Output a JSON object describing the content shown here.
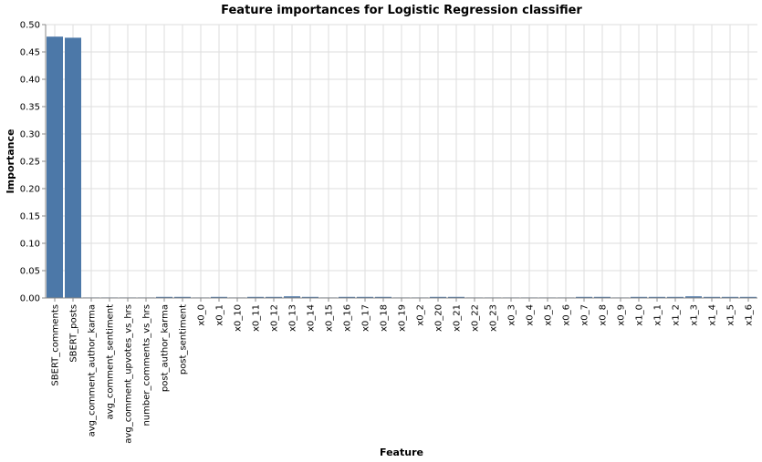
{
  "chart_data": {
    "type": "bar",
    "title": "Feature importances for Logistic Regression classifier",
    "xlabel": "Feature",
    "ylabel": "Importance",
    "ylim": [
      0,
      0.5
    ],
    "yticks": [
      "0.00",
      "0.05",
      "0.10",
      "0.15",
      "0.20",
      "0.25",
      "0.30",
      "0.35",
      "0.40",
      "0.45",
      "0.50"
    ],
    "grid": true,
    "bar_color": "#4c78a8",
    "categories": [
      "SBERT_comments",
      "SBERT_posts",
      "avg_comment_author_karma",
      "avg_comment_sentiment",
      "avg_comment_upvotes_vs_hrs",
      "number_comments_vs_hrs",
      "post_author_karma",
      "post_sentiment",
      "x0_0",
      "x0_1",
      "x0_10",
      "x0_11",
      "x0_12",
      "x0_13",
      "x0_14",
      "x0_15",
      "x0_16",
      "x0_17",
      "x0_18",
      "x0_19",
      "x0_2",
      "x0_20",
      "x0_21",
      "x0_22",
      "x0_23",
      "x0_3",
      "x0_4",
      "x0_5",
      "x0_6",
      "x0_7",
      "x0_8",
      "x0_9",
      "x1_0",
      "x1_1",
      "x1_2",
      "x1_3",
      "x1_4",
      "x1_5",
      "x1_6"
    ],
    "values": [
      0.478,
      0.476,
      0.001,
      0.001,
      0.001,
      0.001,
      0.002,
      0.002,
      0.001,
      0.002,
      0.001,
      0.002,
      0.002,
      0.003,
      0.002,
      0.001,
      0.002,
      0.002,
      0.002,
      0.001,
      0.001,
      0.002,
      0.002,
      0.001,
      0.001,
      0.001,
      0.001,
      0.001,
      0.001,
      0.002,
      0.002,
      0.001,
      0.002,
      0.002,
      0.002,
      0.003,
      0.002,
      0.002,
      0.002
    ]
  }
}
